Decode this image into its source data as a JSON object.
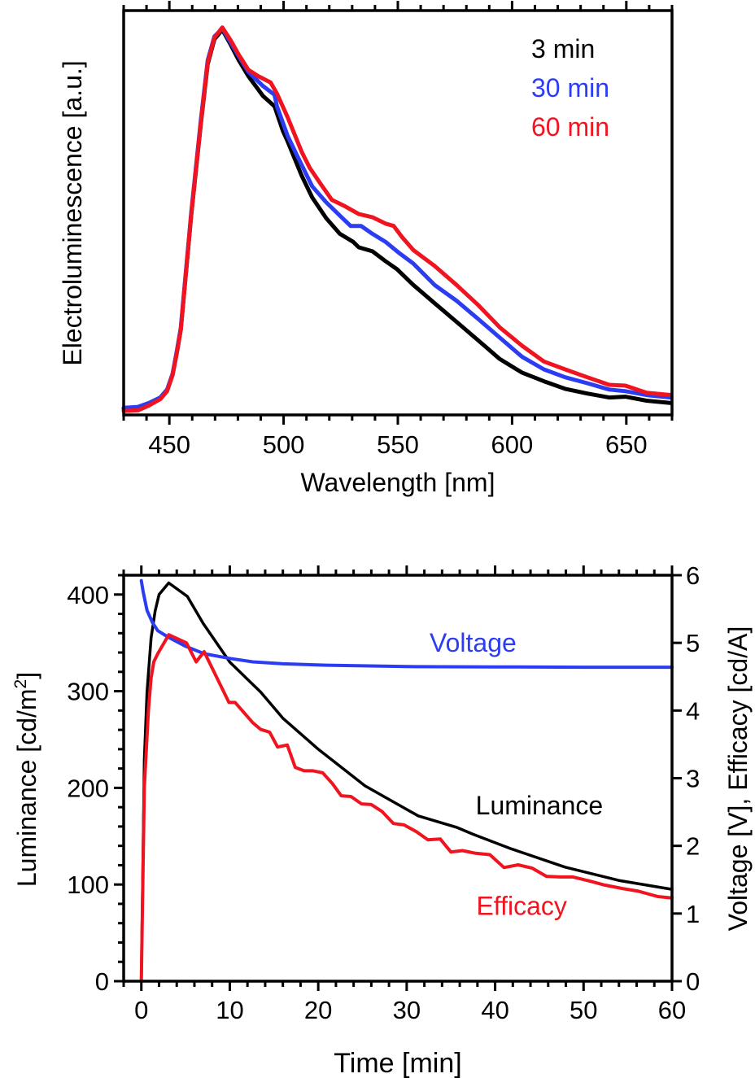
{
  "chart_data": [
    {
      "id": "spectra",
      "type": "line",
      "title": "",
      "xlabel": "Wavelength [nm]",
      "ylabel": "Electroluminescence [a.u.]",
      "xlim": [
        430,
        670
      ],
      "ylim": [
        0,
        1.0
      ],
      "x_major_ticks": [
        450,
        500,
        550,
        600,
        650
      ],
      "x_minor_step": 10,
      "y_ticks_shown": false,
      "grid": false,
      "legend_position": "top-right",
      "series": [
        {
          "name": "3 min",
          "color": "#000000",
          "points": [
            [
              430,
              0.016
            ],
            [
              436,
              0.018
            ],
            [
              441,
              0.028
            ],
            [
              446,
              0.042
            ],
            [
              449,
              0.062
            ],
            [
              451.4,
              0.101
            ],
            [
              453.2,
              0.155
            ],
            [
              455,
              0.215
            ],
            [
              459.6,
              0.505
            ],
            [
              463.8,
              0.735
            ],
            [
              466.8,
              0.885
            ],
            [
              469.7,
              0.948
            ],
            [
              473.2,
              0.972
            ],
            [
              476.8,
              0.935
            ],
            [
              480.4,
              0.895
            ],
            [
              484.6,
              0.855
            ],
            [
              491,
              0.805
            ],
            [
              496,
              0.779
            ],
            [
              499.6,
              0.718
            ],
            [
              501.8,
              0.69
            ],
            [
              507.9,
              0.604
            ],
            [
              512.5,
              0.549
            ],
            [
              518.6,
              0.497
            ],
            [
              524.6,
              0.457
            ],
            [
              530.4,
              0.437
            ],
            [
              532.9,
              0.423
            ],
            [
              538.9,
              0.413
            ],
            [
              544.6,
              0.388
            ],
            [
              549.6,
              0.368
            ],
            [
              556.8,
              0.328
            ],
            [
              566.1,
              0.282
            ],
            [
              575.7,
              0.235
            ],
            [
              585.4,
              0.187
            ],
            [
              594.6,
              0.141
            ],
            [
              604.3,
              0.107
            ],
            [
              613.9,
              0.085
            ],
            [
              623.2,
              0.066
            ],
            [
              632.9,
              0.054
            ],
            [
              642.5,
              0.044
            ],
            [
              649.6,
              0.046
            ],
            [
              658.9,
              0.036
            ],
            [
              669.6,
              0.03
            ]
          ]
        },
        {
          "name": "30 min",
          "color": "#2b3cf2",
          "points": [
            [
              430,
              0.018
            ],
            [
              436,
              0.02
            ],
            [
              441,
              0.03
            ],
            [
              446,
              0.044
            ],
            [
              449,
              0.064
            ],
            [
              451.4,
              0.104
            ],
            [
              453.2,
              0.16
            ],
            [
              455,
              0.22
            ],
            [
              459.6,
              0.512
            ],
            [
              463.8,
              0.745
            ],
            [
              466.8,
              0.895
            ],
            [
              469.7,
              0.955
            ],
            [
              473.2,
              0.975
            ],
            [
              476.8,
              0.94
            ],
            [
              480.4,
              0.905
            ],
            [
              484.6,
              0.866
            ],
            [
              491,
              0.83
            ],
            [
              496,
              0.808
            ],
            [
              497.1,
              0.779
            ],
            [
              501.8,
              0.704
            ],
            [
              506.8,
              0.644
            ],
            [
              512.5,
              0.577
            ],
            [
              518.6,
              0.537
            ],
            [
              524.6,
              0.503
            ],
            [
              529.3,
              0.477
            ],
            [
              533.9,
              0.477
            ],
            [
              538.9,
              0.457
            ],
            [
              544.6,
              0.437
            ],
            [
              550.7,
              0.408
            ],
            [
              556.8,
              0.382
            ],
            [
              566.1,
              0.328
            ],
            [
              575.7,
              0.288
            ],
            [
              585.4,
              0.241
            ],
            [
              594.6,
              0.195
            ],
            [
              604.3,
              0.147
            ],
            [
              613.9,
              0.115
            ],
            [
              623.2,
              0.095
            ],
            [
              632.9,
              0.08
            ],
            [
              642.5,
              0.064
            ],
            [
              649.6,
              0.06
            ],
            [
              658.9,
              0.05
            ],
            [
              669.6,
              0.044
            ]
          ]
        },
        {
          "name": "60 min",
          "color": "#f01420",
          "points": [
            [
              430,
              0.01
            ],
            [
              436.4,
              0.012
            ],
            [
              441.1,
              0.024
            ],
            [
              446.1,
              0.04
            ],
            [
              449,
              0.06
            ],
            [
              451.4,
              0.101
            ],
            [
              453.2,
              0.155
            ],
            [
              455,
              0.215
            ],
            [
              459.6,
              0.507
            ],
            [
              463.8,
              0.738
            ],
            [
              466.8,
              0.889
            ],
            [
              469.7,
              0.952
            ],
            [
              473.2,
              0.978
            ],
            [
              476.8,
              0.946
            ],
            [
              480.4,
              0.909
            ],
            [
              484.6,
              0.871
            ],
            [
              488.9,
              0.855
            ],
            [
              494.3,
              0.839
            ],
            [
              497.1,
              0.811
            ],
            [
              501.8,
              0.751
            ],
            [
              507.9,
              0.664
            ],
            [
              511.4,
              0.624
            ],
            [
              516.1,
              0.584
            ],
            [
              521.1,
              0.543
            ],
            [
              526.8,
              0.527
            ],
            [
              532.9,
              0.507
            ],
            [
              538.9,
              0.499
            ],
            [
              544.6,
              0.483
            ],
            [
              548.2,
              0.477
            ],
            [
              551.8,
              0.449
            ],
            [
              556.8,
              0.416
            ],
            [
              566.1,
              0.376
            ],
            [
              575.7,
              0.328
            ],
            [
              585.4,
              0.276
            ],
            [
              594.6,
              0.221
            ],
            [
              604.3,
              0.175
            ],
            [
              613.9,
              0.135
            ],
            [
              623.2,
              0.115
            ],
            [
              632.9,
              0.095
            ],
            [
              642.5,
              0.076
            ],
            [
              649.6,
              0.074
            ],
            [
              658.9,
              0.056
            ],
            [
              669.6,
              0.05
            ]
          ]
        }
      ],
      "legend": [
        {
          "label": "3 min",
          "color": "#000000"
        },
        {
          "label": "30 min",
          "color": "#2b3cf2"
        },
        {
          "label": "60 min",
          "color": "#f01420"
        }
      ]
    },
    {
      "id": "time-evolution",
      "type": "line",
      "title": "",
      "xlabel": "Time [min]",
      "ylabel": "Luminance [cd/m",
      "ylabel_superscript": "2",
      "ylabel_suffix": "]",
      "y2label": "Voltage [V], Efficacy [cd/A]",
      "xlim": [
        -2,
        60
      ],
      "ylim": [
        0,
        420
      ],
      "y2lim": [
        0,
        6
      ],
      "x_major_ticks": [
        0,
        10,
        20,
        30,
        40,
        50,
        60
      ],
      "x_minor_step": 2,
      "y_major_ticks": [
        0,
        100,
        200,
        300,
        400
      ],
      "y_minor_step": 20,
      "y2_major_ticks": [
        0,
        1,
        2,
        3,
        4,
        5,
        6
      ],
      "grid": false,
      "series": [
        {
          "name": "Luminance",
          "axis": "left",
          "color": "#000000",
          "points": [
            [
              0,
              0
            ],
            [
              0.34,
              229
            ],
            [
              0.64,
              299
            ],
            [
              1.1,
              355
            ],
            [
              1.56,
              383
            ],
            [
              2.0,
              400
            ],
            [
              3.1,
              412
            ],
            [
              5.2,
              398
            ],
            [
              7,
              370
            ],
            [
              10,
              330
            ],
            [
              13.5,
              299
            ],
            [
              16,
              272
            ],
            [
              20,
              240
            ],
            [
              25.3,
              202
            ],
            [
              31.3,
              171
            ],
            [
              35.7,
              159
            ],
            [
              37.5,
              152
            ],
            [
              41.8,
              137
            ],
            [
              47.9,
              118
            ],
            [
              54.1,
              104
            ],
            [
              60,
              95
            ]
          ]
        },
        {
          "name": "Voltage",
          "axis": "right",
          "color": "#2b3cf2",
          "points": [
            [
              0,
              5.92
            ],
            [
              0.2,
              5.76
            ],
            [
              0.64,
              5.48
            ],
            [
              1.26,
              5.3
            ],
            [
              1.85,
              5.18
            ],
            [
              3.1,
              5.08
            ],
            [
              5,
              4.95
            ],
            [
              7.1,
              4.84
            ],
            [
              10,
              4.77
            ],
            [
              12.6,
              4.72
            ],
            [
              16,
              4.69
            ],
            [
              20.9,
              4.67
            ],
            [
              30,
              4.65
            ],
            [
              40,
              4.645
            ],
            [
              50,
              4.64
            ],
            [
              60,
              4.64
            ]
          ]
        },
        {
          "name": "Efficacy",
          "axis": "right",
          "color": "#f01420",
          "points": [
            [
              0,
              0
            ],
            [
              0.34,
              2.87
            ],
            [
              0.8,
              4.0
            ],
            [
              1.1,
              4.48
            ],
            [
              1.4,
              4.72
            ],
            [
              1.85,
              4.84
            ],
            [
              3.1,
              5.12
            ],
            [
              5.1,
              5.0
            ],
            [
              6.2,
              4.72
            ],
            [
              7.1,
              4.87
            ],
            [
              9.9,
              4.12
            ],
            [
              10.6,
              4.12
            ],
            [
              12.6,
              3.82
            ],
            [
              13.5,
              3.72
            ],
            [
              14.5,
              3.68
            ],
            [
              15.4,
              3.46
            ],
            [
              16.5,
              3.49
            ],
            [
              17.4,
              3.16
            ],
            [
              18.4,
              3.11
            ],
            [
              19.4,
              3.11
            ],
            [
              20.5,
              3.08
            ],
            [
              21.6,
              2.92
            ],
            [
              22.6,
              2.74
            ],
            [
              23.7,
              2.73
            ],
            [
              24.9,
              2.62
            ],
            [
              26.0,
              2.61
            ],
            [
              27.2,
              2.51
            ],
            [
              28.5,
              2.33
            ],
            [
              29.7,
              2.31
            ],
            [
              31.1,
              2.21
            ],
            [
              32.4,
              2.09
            ],
            [
              33.8,
              2.1
            ],
            [
              35.0,
              1.91
            ],
            [
              36.3,
              1.93
            ],
            [
              37.8,
              1.89
            ],
            [
              39.4,
              1.87
            ],
            [
              41.0,
              1.68
            ],
            [
              42.6,
              1.72
            ],
            [
              44.2,
              1.67
            ],
            [
              45.8,
              1.55
            ],
            [
              47.4,
              1.54
            ],
            [
              48.8,
              1.54
            ],
            [
              50.7,
              1.48
            ],
            [
              52.4,
              1.42
            ],
            [
              54.4,
              1.37
            ],
            [
              56.2,
              1.33
            ],
            [
              58.4,
              1.25
            ],
            [
              60,
              1.23
            ]
          ]
        }
      ],
      "annotations": [
        {
          "text": "Voltage",
          "color": "#2b3cf2",
          "x": 37.5,
          "y2": 5.0
        },
        {
          "text": "Luminance",
          "color": "#000000",
          "x": 45,
          "y": 182
        },
        {
          "text": "Efficacy",
          "color": "#f01420",
          "x": 43,
          "y": 78
        }
      ]
    }
  ]
}
